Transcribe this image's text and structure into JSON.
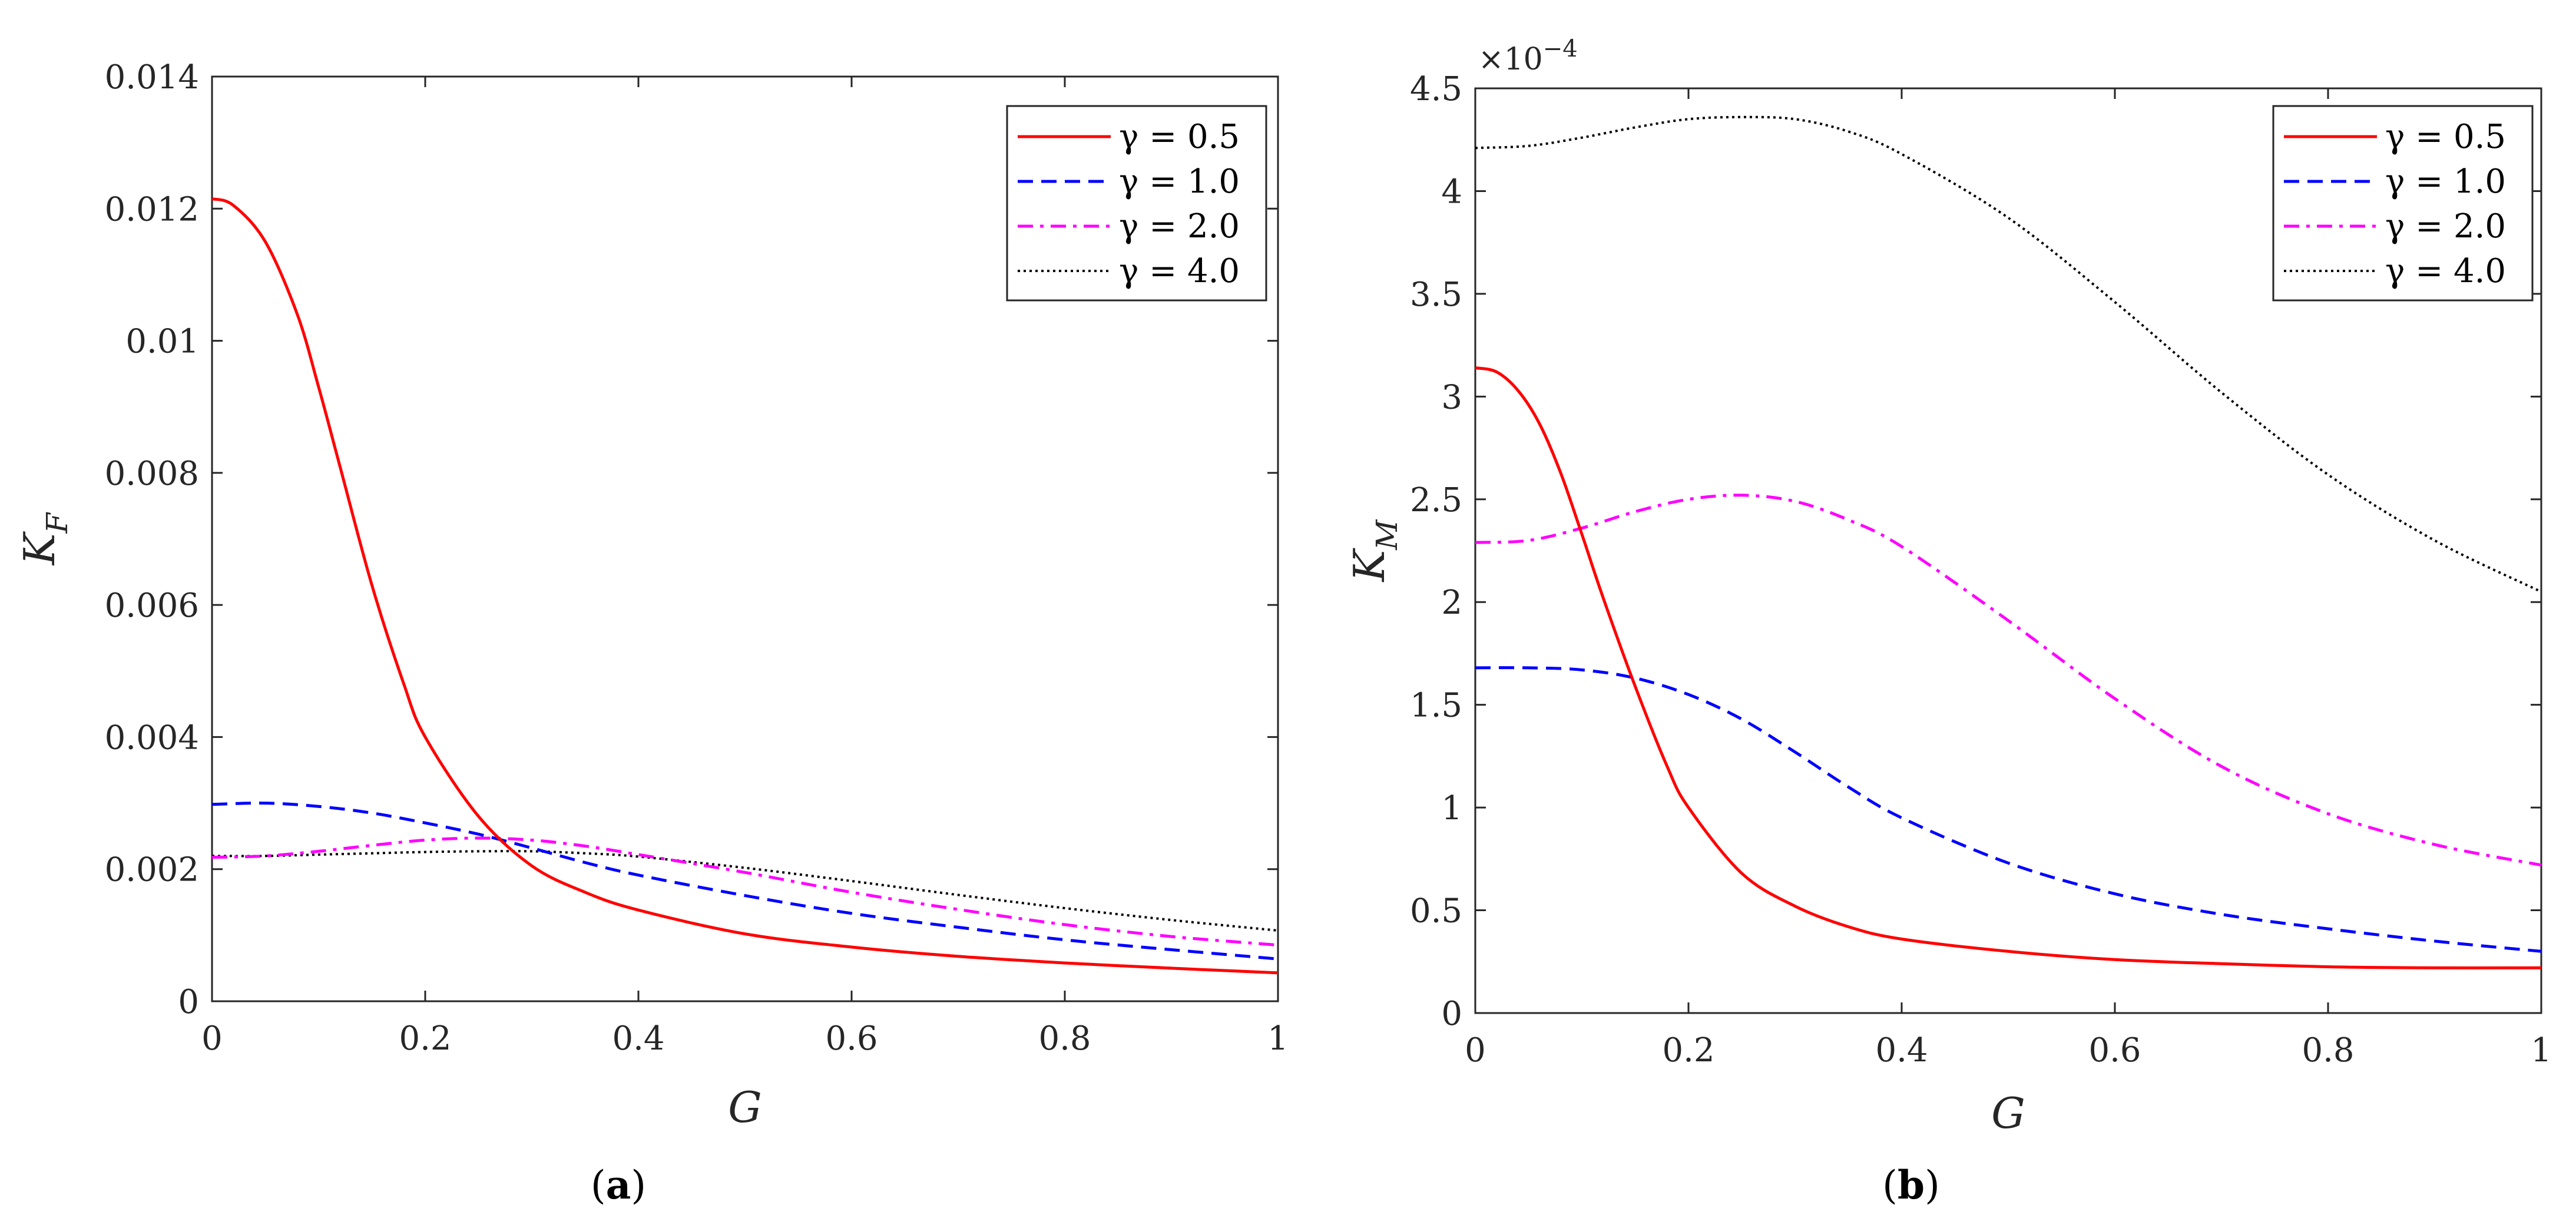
{
  "chart_data": [
    {
      "type": "line",
      "panel": "a",
      "caption_prefix": "(",
      "caption_letter": "a",
      "caption_suffix": ")",
      "xlabel": "G",
      "ylabel_main": "K",
      "ylabel_sub": "F",
      "xlim": [
        0,
        1
      ],
      "ylim": [
        0,
        0.014
      ],
      "xticks": [
        "0",
        "0.2",
        "0.4",
        "0.6",
        "0.8",
        "1"
      ],
      "xtick_values": [
        0,
        0.2,
        0.4,
        0.6,
        0.8,
        1
      ],
      "yticks": [
        "0",
        "0.002",
        "0.004",
        "0.006",
        "0.008",
        "0.01",
        "0.012",
        "0.014"
      ],
      "ytick_values": [
        0,
        0.002,
        0.004,
        0.006,
        0.008,
        0.01,
        0.012,
        0.014
      ],
      "legend_position": "top-right",
      "series": [
        {
          "name": "γ = 0.5",
          "color": "#ff0000",
          "dash": "solid",
          "x": [
            0,
            0.02,
            0.05,
            0.08,
            0.1,
            0.12,
            0.15,
            0.18,
            0.2,
            0.25,
            0.3,
            0.35,
            0.4,
            0.5,
            0.6,
            0.7,
            0.8,
            0.9,
            1.0
          ],
          "y": [
            0.01215,
            0.01205,
            0.0115,
            0.0104,
            0.0093,
            0.0081,
            0.0063,
            0.0048,
            0.004,
            0.0028,
            0.00205,
            0.00165,
            0.00138,
            0.00102,
            0.00082,
            0.00068,
            0.00058,
            0.0005,
            0.00043
          ]
        },
        {
          "name": "γ = 1.0",
          "color": "#0000ff",
          "dash": "dashed",
          "x": [
            0,
            0.05,
            0.1,
            0.15,
            0.2,
            0.25,
            0.3,
            0.35,
            0.4,
            0.5,
            0.6,
            0.7,
            0.8,
            0.9,
            1.0
          ],
          "y": [
            0.00298,
            0.003,
            0.00295,
            0.00285,
            0.0027,
            0.00253,
            0.00232,
            0.0021,
            0.00191,
            0.0016,
            0.00133,
            0.00112,
            0.00093,
            0.00078,
            0.00064
          ],
          "note": "curve"
        },
        {
          "name": "γ = 2.0",
          "color": "#ff00ff",
          "dash": "dashdot",
          "x": [
            0,
            0.05,
            0.1,
            0.15,
            0.2,
            0.25,
            0.3,
            0.35,
            0.4,
            0.5,
            0.6,
            0.7,
            0.8,
            0.9,
            1.0
          ],
          "y": [
            0.00218,
            0.0022,
            0.00227,
            0.00236,
            0.00244,
            0.00247,
            0.00244,
            0.00235,
            0.00222,
            0.00195,
            0.00165,
            0.00139,
            0.00116,
            0.00098,
            0.00085
          ]
        },
        {
          "name": "γ = 4.0",
          "color": "#000000",
          "dash": "dotted",
          "x": [
            0,
            0.05,
            0.1,
            0.15,
            0.2,
            0.25,
            0.3,
            0.35,
            0.4,
            0.5,
            0.6,
            0.7,
            0.8,
            0.9,
            1.0
          ],
          "y": [
            0.0022,
            0.0022,
            0.00222,
            0.00224,
            0.00226,
            0.00227,
            0.00227,
            0.00224,
            0.00219,
            0.00202,
            0.00182,
            0.00161,
            0.00141,
            0.00123,
            0.00107
          ]
        }
      ]
    },
    {
      "type": "line",
      "panel": "b",
      "caption_prefix": "(",
      "caption_letter": "b",
      "caption_suffix": ")",
      "xlabel": "G",
      "ylabel_main": "K",
      "ylabel_sub": "M",
      "scale_base": "×10",
      "scale_exp": "−4",
      "xlim": [
        0,
        1
      ],
      "ylim": [
        0,
        4.5
      ],
      "xticks": [
        "0",
        "0.2",
        "0.4",
        "0.6",
        "0.8",
        "1"
      ],
      "xtick_values": [
        0,
        0.2,
        0.4,
        0.6,
        0.8,
        1
      ],
      "yticks": [
        "0",
        "0.5",
        "1",
        "1.5",
        "2",
        "2.5",
        "3",
        "3.5",
        "4",
        "4.5"
      ],
      "ytick_values": [
        0,
        0.5,
        1,
        1.5,
        2,
        2.5,
        3,
        3.5,
        4,
        4.5
      ],
      "legend_position": "top-right",
      "series": [
        {
          "name": "γ = 0.5",
          "color": "#ff0000",
          "dash": "solid",
          "x": [
            0,
            0.02,
            0.04,
            0.06,
            0.08,
            0.1,
            0.12,
            0.15,
            0.18,
            0.2,
            0.25,
            0.3,
            0.35,
            0.4,
            0.5,
            0.6,
            0.7,
            0.8,
            0.9,
            1.0
          ],
          "y": [
            3.14,
            3.12,
            3.03,
            2.87,
            2.63,
            2.33,
            2.02,
            1.59,
            1.2,
            1.0,
            0.68,
            0.52,
            0.42,
            0.36,
            0.3,
            0.26,
            0.24,
            0.225,
            0.22,
            0.22
          ]
        },
        {
          "name": "γ = 1.0",
          "color": "#0000ff",
          "dash": "dashed",
          "x": [
            0,
            0.05,
            0.1,
            0.15,
            0.2,
            0.25,
            0.3,
            0.35,
            0.4,
            0.5,
            0.6,
            0.7,
            0.8,
            0.9,
            1.0
          ],
          "y": [
            1.68,
            1.68,
            1.67,
            1.63,
            1.55,
            1.43,
            1.27,
            1.1,
            0.95,
            0.73,
            0.58,
            0.48,
            0.41,
            0.35,
            0.3
          ]
        },
        {
          "name": "γ = 2.0",
          "color": "#ff00ff",
          "dash": "dashdot",
          "x": [
            0,
            0.05,
            0.1,
            0.15,
            0.2,
            0.25,
            0.3,
            0.35,
            0.4,
            0.5,
            0.6,
            0.7,
            0.8,
            0.9,
            1.0
          ],
          "y": [
            2.29,
            2.3,
            2.36,
            2.44,
            2.5,
            2.52,
            2.49,
            2.4,
            2.27,
            1.91,
            1.53,
            1.2,
            0.97,
            0.82,
            0.72
          ]
        },
        {
          "name": "γ = 4.0",
          "color": "#000000",
          "dash": "dotted",
          "x": [
            0,
            0.05,
            0.1,
            0.15,
            0.2,
            0.25,
            0.3,
            0.35,
            0.4,
            0.5,
            0.6,
            0.7,
            0.8,
            0.9,
            1.0
          ],
          "y": [
            4.21,
            4.22,
            4.26,
            4.31,
            4.35,
            4.36,
            4.35,
            4.29,
            4.18,
            3.87,
            3.46,
            3.02,
            2.62,
            2.3,
            2.05
          ]
        }
      ]
    }
  ]
}
